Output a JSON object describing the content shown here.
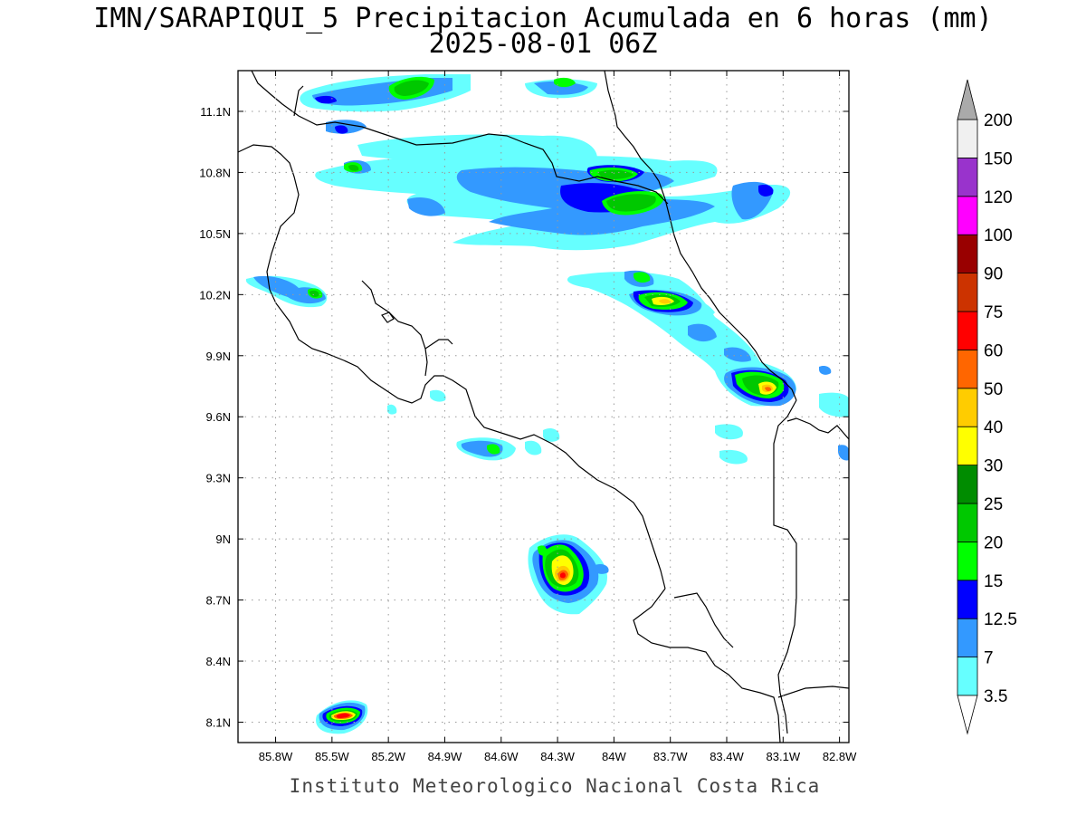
{
  "header": {
    "title_line1": "IMN/SARAPIQUI_5 Precipitacion Acumulada en 6 horas (mm)",
    "title_line2": "2025-08-01 06Z"
  },
  "footer": {
    "credit": "Instituto Meteorologico Nacional Costa Rica"
  },
  "map": {
    "lon_range": [
      -86.0,
      -82.75
    ],
    "lat_range": [
      8.0,
      11.3
    ],
    "lon_ticks": [
      {
        "value": -85.8,
        "label": "85.8W"
      },
      {
        "value": -85.5,
        "label": "85.5W"
      },
      {
        "value": -85.2,
        "label": "85.2W"
      },
      {
        "value": -84.9,
        "label": "84.9W"
      },
      {
        "value": -84.6,
        "label": "84.6W"
      },
      {
        "value": -84.3,
        "label": "84.3W"
      },
      {
        "value": -84.0,
        "label": "84W"
      },
      {
        "value": -83.7,
        "label": "83.7W"
      },
      {
        "value": -83.4,
        "label": "83.4W"
      },
      {
        "value": -83.1,
        "label": "83.1W"
      },
      {
        "value": -82.8,
        "label": "82.8W"
      }
    ],
    "lat_ticks": [
      {
        "value": 11.1,
        "label": "11.1N"
      },
      {
        "value": 10.8,
        "label": "10.8N"
      },
      {
        "value": 10.5,
        "label": "10.5N"
      },
      {
        "value": 10.2,
        "label": "10.2N"
      },
      {
        "value": 9.9,
        "label": "9.9N"
      },
      {
        "value": 9.6,
        "label": "9.6N"
      },
      {
        "value": 9.3,
        "label": "9.3N"
      },
      {
        "value": 9.0,
        "label": "9N"
      },
      {
        "value": 8.7,
        "label": "8.7N"
      },
      {
        "value": 8.4,
        "label": "8.4N"
      },
      {
        "value": 8.1,
        "label": "8.1N"
      }
    ],
    "grid": true
  },
  "colorbar": {
    "levels": [
      {
        "label": "3.5",
        "color": "#66ffff"
      },
      {
        "label": "7",
        "color": "#3399ff"
      },
      {
        "label": "12.5",
        "color": "#0000ff"
      },
      {
        "label": "15",
        "color": "#00ff00"
      },
      {
        "label": "20",
        "color": "#00c800"
      },
      {
        "label": "25",
        "color": "#008c00"
      },
      {
        "label": "30",
        "color": "#ffff00"
      },
      {
        "label": "40",
        "color": "#ffcc00"
      },
      {
        "label": "50",
        "color": "#ff6600"
      },
      {
        "label": "60",
        "color": "#ff0000"
      },
      {
        "label": "75",
        "color": "#cc3300"
      },
      {
        "label": "90",
        "color": "#990000"
      },
      {
        "label": "100",
        "color": "#ff00ff"
      },
      {
        "label": "120",
        "color": "#9933cc"
      },
      {
        "label": "150",
        "color": "#f0f0f0"
      },
      {
        "label": "200",
        "color": ""
      }
    ],
    "over_color": "#aaaaaa",
    "under_color": "#ffffff"
  },
  "precip_cells": [
    {
      "name": "cell-southern-nicoya",
      "lon": -85.38,
      "lat": 8.13,
      "peak": 75
    },
    {
      "name": "cell-osa-north",
      "lon": -84.1,
      "lat": 8.83,
      "peak": 75
    },
    {
      "name": "cell-caribbean-sixaola",
      "lon": -82.95,
      "lat": 9.74,
      "peak": 40
    },
    {
      "name": "cell-limon-coast",
      "lon": -83.6,
      "lat": 10.17,
      "peak": 40
    },
    {
      "name": "cell-tortuguero-north",
      "lon": -83.82,
      "lat": 10.79,
      "peak": 25
    },
    {
      "name": "cell-tortuguero",
      "lon": -83.75,
      "lat": 10.66,
      "peak": 25
    },
    {
      "name": "cell-nicaragua-lake",
      "lon": -84.95,
      "lat": 11.2,
      "peak": 25
    },
    {
      "name": "cell-nicaragua-east",
      "lon": -84.13,
      "lat": 11.18,
      "peak": 25
    },
    {
      "name": "cell-guanacaste-north",
      "lon": -85.3,
      "lat": 10.84,
      "peak": 25
    },
    {
      "name": "cell-nicoya-west",
      "lon": -85.45,
      "lat": 10.2,
      "peak": 25
    },
    {
      "name": "cell-parrita",
      "lon": -84.55,
      "lat": 9.43,
      "peak": 25
    },
    {
      "name": "cell-caribbean-northeast",
      "lon": -82.93,
      "lat": 10.74,
      "peak": 12.5
    }
  ]
}
